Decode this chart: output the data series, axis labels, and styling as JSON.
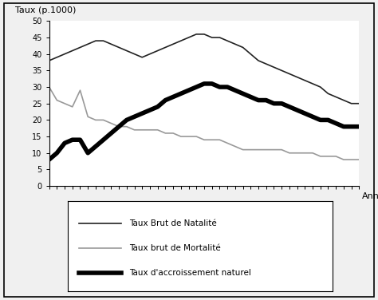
{
  "title_ylabel": "Taux (p.1000)",
  "xlabel": "Année",
  "ylim": [
    0,
    50
  ],
  "yticks": [
    0,
    5,
    10,
    15,
    20,
    25,
    30,
    35,
    40,
    45,
    50
  ],
  "background_color": "#ffffff",
  "figure_background": "#f0f0f0",
  "natalite_x": [
    0,
    1,
    2,
    3,
    4,
    5,
    6,
    7,
    8,
    9,
    10,
    11,
    12,
    13,
    14,
    15,
    16,
    17,
    18,
    19,
    20,
    21,
    22,
    23,
    24,
    25,
    26,
    27,
    28,
    29,
    30,
    31,
    32,
    33,
    34,
    35,
    36,
    37,
    38,
    39,
    40
  ],
  "natalite_y": [
    38,
    39,
    40,
    41,
    42,
    43,
    44,
    44,
    43,
    42,
    41,
    40,
    39,
    40,
    41,
    42,
    43,
    44,
    45,
    46,
    46,
    45,
    45,
    44,
    43,
    42,
    40,
    38,
    37,
    36,
    35,
    34,
    33,
    32,
    31,
    30,
    28,
    27,
    26,
    25,
    25
  ],
  "mortalite_x": [
    0,
    1,
    2,
    3,
    4,
    5,
    6,
    7,
    8,
    9,
    10,
    11,
    12,
    13,
    14,
    15,
    16,
    17,
    18,
    19,
    20,
    21,
    22,
    23,
    24,
    25,
    26,
    27,
    28,
    29,
    30,
    31,
    32,
    33,
    34,
    35,
    36,
    37,
    38,
    39,
    40
  ],
  "mortalite_y": [
    30,
    26,
    25,
    24,
    29,
    21,
    20,
    20,
    19,
    18,
    18,
    17,
    17,
    17,
    17,
    16,
    16,
    15,
    15,
    15,
    14,
    14,
    14,
    13,
    12,
    11,
    11,
    11,
    11,
    11,
    11,
    10,
    10,
    10,
    10,
    9,
    9,
    9,
    8,
    8,
    8
  ],
  "accroissement_x": [
    0,
    1,
    2,
    3,
    4,
    5,
    6,
    7,
    8,
    9,
    10,
    11,
    12,
    13,
    14,
    15,
    16,
    17,
    18,
    19,
    20,
    21,
    22,
    23,
    24,
    25,
    26,
    27,
    28,
    29,
    30,
    31,
    32,
    33,
    34,
    35,
    36,
    37,
    38,
    39,
    40
  ],
  "accroissement_y": [
    8,
    10,
    13,
    14,
    14,
    10,
    12,
    14,
    16,
    18,
    20,
    21,
    22,
    23,
    24,
    26,
    27,
    28,
    29,
    30,
    31,
    31,
    30,
    30,
    29,
    28,
    27,
    26,
    26,
    25,
    25,
    24,
    23,
    22,
    21,
    20,
    20,
    19,
    18,
    18,
    18
  ],
  "legend_entries": [
    {
      "label": "Taux Brut de Natalité",
      "color": "#222222",
      "linewidth": 1.2
    },
    {
      "label": "Taux brut de Mortalité",
      "color": "#999999",
      "linewidth": 1.2
    },
    {
      "label": "Taux d'accroissement naturel",
      "color": "#000000",
      "linewidth": 4.0
    }
  ]
}
